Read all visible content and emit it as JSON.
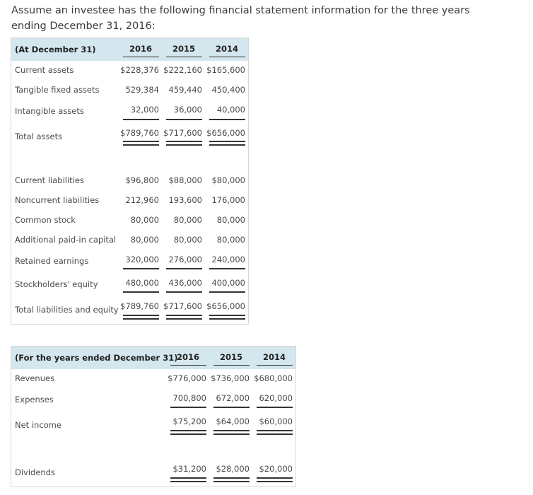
{
  "intro": "Assume an investee has the following financial statement information for the three years ending December 31, 2016:",
  "balance_sheet": {
    "header": "(At December 31)",
    "years": [
      "2016",
      "2015",
      "2014"
    ],
    "rows": [
      {
        "label": "Current assets",
        "values": [
          "$228,376",
          "$222,160",
          "$165,600"
        ]
      },
      {
        "label": "Tangible fixed assets",
        "values": [
          "529,384",
          "459,440",
          "450,400"
        ]
      },
      {
        "label": "Intangible assets",
        "values": [
          "32,000",
          "36,000",
          "40,000"
        ]
      },
      {
        "label": "Total assets",
        "values": [
          "$789,760",
          "$717,600",
          "$656,000"
        ]
      },
      {
        "label": "Current liabilities",
        "values": [
          "$96,800",
          "$88,000",
          "$80,000"
        ]
      },
      {
        "label": "Noncurrent liabilities",
        "values": [
          "212,960",
          "193,600",
          "176,000"
        ]
      },
      {
        "label": "Common stock",
        "values": [
          "80,000",
          "80,000",
          "80,000"
        ]
      },
      {
        "label": "Additional paid-in capital",
        "values": [
          "80,000",
          "80,000",
          "80,000"
        ]
      },
      {
        "label": "Retained earnings",
        "values": [
          "320,000",
          "276,000",
          "240,000"
        ]
      },
      {
        "label": "Stockholders' equity",
        "values": [
          "480,000",
          "436,000",
          "400,000"
        ]
      },
      {
        "label": "Total liabilities and equity",
        "values": [
          "$789,760",
          "$717,600",
          "$656,000"
        ]
      }
    ]
  },
  "income_statement": {
    "header": "(For the years ended December 31)",
    "years": [
      "2016",
      "2015",
      "2014"
    ],
    "rows": [
      {
        "label": "Revenues",
        "values": [
          "$776,000",
          "$736,000",
          "$680,000"
        ]
      },
      {
        "label": "Expenses",
        "values": [
          "700,800",
          "672,000",
          "620,000"
        ]
      },
      {
        "label": "Net income",
        "values": [
          "$75,200",
          "$64,000",
          "$60,000"
        ]
      },
      {
        "label": "Dividends",
        "values": [
          "$31,200",
          "$28,000",
          "$20,000"
        ]
      }
    ]
  }
}
